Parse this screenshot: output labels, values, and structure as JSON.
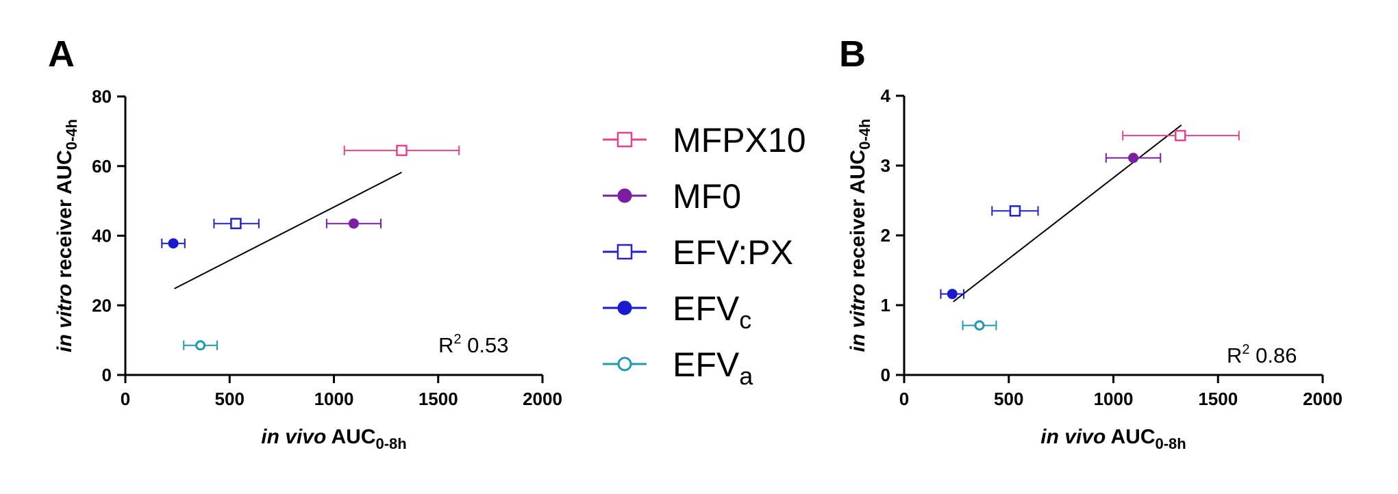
{
  "chart_data": [
    {
      "type": "scatter",
      "panel": "A",
      "xlabel": {
        "italic": "in vivo",
        "main": " AUC",
        "sub": "0-8h"
      },
      "ylabel": {
        "italic": "in vitro",
        "main": " receiver AUC",
        "sub": "0-4h"
      },
      "xlim": [
        0,
        2000
      ],
      "ylim": [
        0,
        80
      ],
      "xticks": [
        "0",
        "500",
        "1000",
        "1500",
        "2000"
      ],
      "yticks": [
        "0",
        "20",
        "40",
        "60",
        "80"
      ],
      "annotation": {
        "text": "R",
        "sup": "2",
        "value": " 0.53"
      },
      "fit_line": [
        [
          235,
          24.8
        ],
        [
          1325,
          58.2
        ]
      ],
      "series": [
        {
          "name": "MFPX10",
          "x": 1325,
          "y": 64.5,
          "xerr": [
            1050,
            1600
          ]
        },
        {
          "name": "MF0",
          "x": 1095,
          "y": 43.5,
          "xerr": [
            965,
            1225
          ]
        },
        {
          "name": "EFV:PX",
          "x": 530,
          "y": 43.5,
          "xerr": [
            425,
            640
          ]
        },
        {
          "name": "EFV_c",
          "x": 230,
          "y": 37.8,
          "xerr": [
            175,
            285
          ]
        },
        {
          "name": "EFV_a",
          "x": 360,
          "y": 8.5,
          "xerr": [
            280,
            440
          ]
        }
      ]
    },
    {
      "type": "scatter",
      "panel": "B",
      "xlabel": {
        "italic": "in vivo",
        "main": " AUC",
        "sub": "0-8h"
      },
      "ylabel": {
        "italic": "in vitro",
        "main": " receiver AUC",
        "sub": "0-4h"
      },
      "xlim": [
        0,
        2000
      ],
      "ylim": [
        0,
        4
      ],
      "xticks": [
        "0",
        "500",
        "1000",
        "1500",
        "2000"
      ],
      "yticks": [
        "0",
        "1",
        "2",
        "3",
        "4"
      ],
      "annotation": {
        "text": "R",
        "sup": "2",
        "value": " 0.86"
      },
      "fit_line": [
        [
          235,
          1.05
        ],
        [
          1325,
          3.58
        ]
      ],
      "series": [
        {
          "name": "MFPX10",
          "x": 1320,
          "y": 3.43,
          "xerr": [
            1045,
            1600
          ]
        },
        {
          "name": "MF0",
          "x": 1095,
          "y": 3.11,
          "xerr": [
            965,
            1225
          ]
        },
        {
          "name": "EFV:PX",
          "x": 530,
          "y": 2.35,
          "xerr": [
            420,
            640
          ]
        },
        {
          "name": "EFV_c",
          "x": 230,
          "y": 1.16,
          "xerr": [
            175,
            285
          ]
        },
        {
          "name": "EFV_a",
          "x": 360,
          "y": 0.71,
          "xerr": [
            280,
            440
          ]
        }
      ]
    }
  ],
  "legend": [
    {
      "label": "MFPX10",
      "sub": "",
      "color": "#e8408c",
      "marker": "square-open"
    },
    {
      "label": "MF0",
      "sub": "",
      "color": "#7b1fa2",
      "marker": "circle-filled"
    },
    {
      "label": "EFV:PX",
      "sub": "",
      "color": "#2323c8",
      "marker": "square-open"
    },
    {
      "label": "EFV",
      "sub": "c",
      "color": "#1a1ad0",
      "marker": "circle-filled"
    },
    {
      "label": "EFV",
      "sub": "a",
      "color": "#1a9bb0",
      "marker": "circle-open"
    }
  ]
}
